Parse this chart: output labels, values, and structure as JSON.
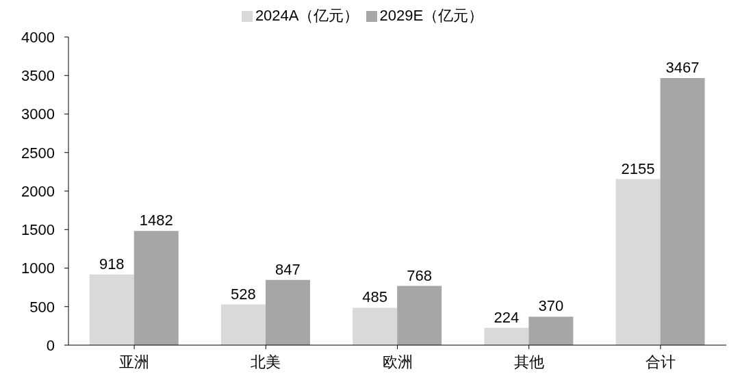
{
  "chart_data": {
    "type": "bar",
    "categories": [
      "亚洲",
      "北美",
      "欧洲",
      "其他",
      "合计"
    ],
    "series": [
      {
        "name": "2024A（亿元）",
        "color": "#d9d9d9",
        "values": [
          918,
          528,
          485,
          224,
          2155
        ]
      },
      {
        "name": "2029E（亿元）",
        "color": "#a6a6a6",
        "values": [
          1482,
          847,
          768,
          370,
          3467
        ]
      }
    ],
    "ylim": [
      0,
      4000
    ],
    "yticks": [
      0,
      500,
      1000,
      1500,
      2000,
      2500,
      3000,
      3500,
      4000
    ],
    "grid": false,
    "legend": "top",
    "data_labels": true
  }
}
